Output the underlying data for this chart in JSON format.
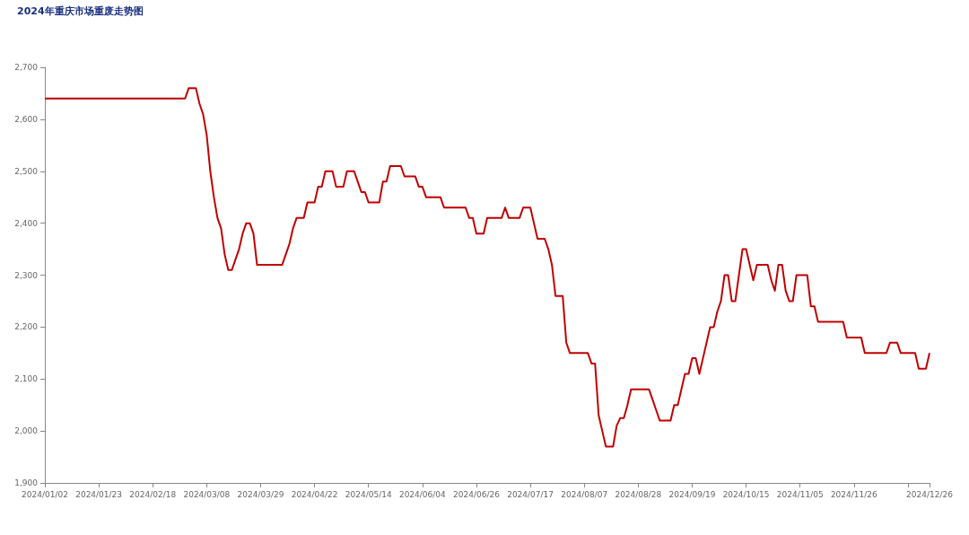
{
  "chart_data": {
    "type": "line",
    "title": "2024年重庆市场重废走势图",
    "categories": [
      "2024/01/02",
      null,
      null,
      null,
      null,
      null,
      null,
      null,
      null,
      null,
      null,
      null,
      null,
      null,
      null,
      "2024/01/23",
      null,
      null,
      null,
      null,
      null,
      null,
      null,
      null,
      null,
      null,
      null,
      null,
      null,
      null,
      "2024/02/18",
      null,
      null,
      null,
      null,
      null,
      null,
      null,
      null,
      null,
      null,
      null,
      null,
      null,
      null,
      "2024/03/08",
      null,
      null,
      null,
      null,
      null,
      null,
      null,
      null,
      null,
      null,
      null,
      null,
      null,
      null,
      "2024/03/29",
      null,
      null,
      null,
      null,
      null,
      null,
      null,
      null,
      null,
      null,
      null,
      null,
      null,
      null,
      "2024/04/22",
      null,
      null,
      null,
      null,
      null,
      null,
      null,
      null,
      null,
      null,
      null,
      null,
      null,
      null,
      "2024/05/14",
      null,
      null,
      null,
      null,
      null,
      null,
      null,
      null,
      null,
      null,
      null,
      null,
      null,
      null,
      "2024/06/04",
      null,
      null,
      null,
      null,
      null,
      null,
      null,
      null,
      null,
      null,
      null,
      null,
      null,
      null,
      "2024/06/26",
      null,
      null,
      null,
      null,
      null,
      null,
      null,
      null,
      null,
      null,
      null,
      null,
      null,
      null,
      "2024/07/17",
      null,
      null,
      null,
      null,
      null,
      null,
      null,
      null,
      null,
      null,
      null,
      null,
      null,
      null,
      "2024/08/07",
      null,
      null,
      null,
      null,
      null,
      null,
      null,
      null,
      null,
      null,
      null,
      null,
      null,
      null,
      "2024/08/28",
      null,
      null,
      null,
      null,
      null,
      null,
      null,
      null,
      null,
      null,
      null,
      null,
      null,
      null,
      "2024/09/19",
      null,
      null,
      null,
      null,
      null,
      null,
      null,
      null,
      null,
      null,
      null,
      null,
      null,
      null,
      "2024/10/15",
      null,
      null,
      null,
      null,
      null,
      null,
      null,
      null,
      null,
      null,
      null,
      null,
      null,
      null,
      "2024/11/05",
      null,
      null,
      null,
      null,
      null,
      null,
      null,
      null,
      null,
      null,
      null,
      null,
      null,
      null,
      "2024/11/26",
      null,
      null,
      null,
      null,
      null,
      null,
      null,
      null,
      null,
      null,
      null,
      null,
      null,
      null,
      null,
      null,
      null,
      null,
      null,
      null,
      "2024/12/26"
    ],
    "series": [
      {
        "color": "#c00000",
        "values": [
          2640,
          2640,
          2640,
          2640,
          2640,
          2640,
          2640,
          2640,
          2640,
          2640,
          2640,
          2640,
          2640,
          2640,
          2640,
          2640,
          2640,
          2640,
          2640,
          2640,
          2640,
          2640,
          2640,
          2640,
          2640,
          2640,
          2640,
          2640,
          2640,
          2640,
          2640,
          2640,
          2640,
          2640,
          2640,
          2640,
          2640,
          2640,
          2640,
          2640,
          2660,
          2660,
          2660,
          2630,
          2610,
          2570,
          2500,
          2450,
          2410,
          2390,
          2340,
          2310,
          2310,
          2330,
          2350,
          2380,
          2400,
          2400,
          2380,
          2320,
          2320,
          2320,
          2320,
          2320,
          2320,
          2320,
          2320,
          2340,
          2360,
          2390,
          2410,
          2410,
          2410,
          2440,
          2440,
          2440,
          2470,
          2470,
          2500,
          2500,
          2500,
          2470,
          2470,
          2470,
          2500,
          2500,
          2500,
          2480,
          2460,
          2460,
          2440,
          2440,
          2440,
          2440,
          2480,
          2480,
          2510,
          2510,
          2510,
          2510,
          2490,
          2490,
          2490,
          2490,
          2470,
          2470,
          2450,
          2450,
          2450,
          2450,
          2450,
          2430,
          2430,
          2430,
          2430,
          2430,
          2430,
          2430,
          2410,
          2410,
          2380,
          2380,
          2380,
          2410,
          2410,
          2410,
          2410,
          2410,
          2430,
          2410,
          2410,
          2410,
          2410,
          2430,
          2430,
          2430,
          2400,
          2370,
          2370,
          2370,
          2350,
          2320,
          2260,
          2260,
          2260,
          2170,
          2150,
          2150,
          2150,
          2150,
          2150,
          2150,
          2130,
          2130,
          2030,
          2000,
          1970,
          1970,
          1970,
          2010,
          2025,
          2025,
          2050,
          2080,
          2080,
          2080,
          2080,
          2080,
          2080,
          2060,
          2040,
          2020,
          2020,
          2020,
          2020,
          2050,
          2050,
          2080,
          2110,
          2110,
          2140,
          2140,
          2110,
          2140,
          2170,
          2200,
          2200,
          2230,
          2250,
          2300,
          2300,
          2250,
          2250,
          2300,
          2350,
          2350,
          2320,
          2290,
          2320,
          2320,
          2320,
          2320,
          2290,
          2270,
          2320,
          2320,
          2270,
          2250,
          2250,
          2300,
          2300,
          2300,
          2300,
          2240,
          2240,
          2210,
          2210,
          2210,
          2210,
          2210,
          2210,
          2210,
          2210,
          2180,
          2180,
          2180,
          2180,
          2180,
          2150,
          2150,
          2150,
          2150,
          2150,
          2150,
          2150,
          2170,
          2170,
          2170,
          2150,
          2150,
          2150,
          2150,
          2150,
          2120,
          2120,
          2120,
          2150
        ]
      }
    ],
    "ylim": [
      1900,
      2700
    ],
    "yticks": [
      {
        "value": 1900,
        "label": "1,900"
      },
      {
        "value": 2000,
        "label": "2,000"
      },
      {
        "value": 2100,
        "label": "2,100"
      },
      {
        "value": 2200,
        "label": "2,200"
      },
      {
        "value": 2300,
        "label": "2,300"
      },
      {
        "value": 2400,
        "label": "2,400"
      },
      {
        "value": 2500,
        "label": "2,500"
      },
      {
        "value": 2600,
        "label": "2,600"
      },
      {
        "value": 2700,
        "label": "2,700"
      }
    ],
    "line_style": "solid"
  }
}
